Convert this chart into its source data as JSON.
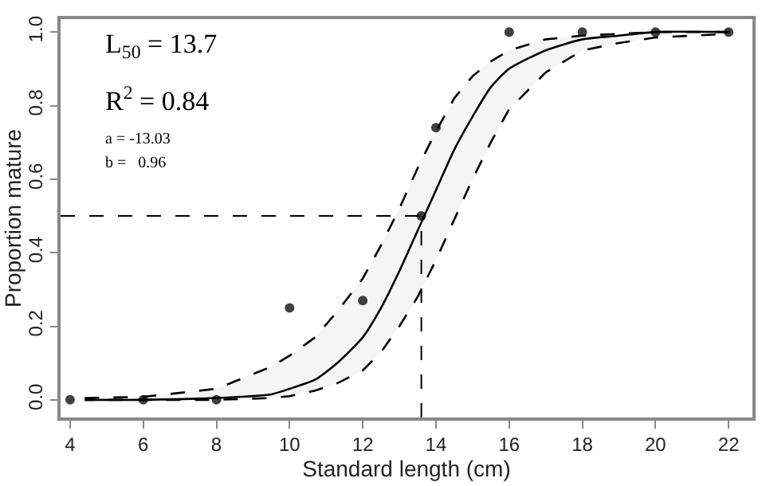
{
  "chart_data": {
    "type": "scatter",
    "xlabel": "Standard length (cm)",
    "ylabel": "Proportion mature",
    "xlim": [
      3.74,
      22.65
    ],
    "ylim": [
      -0.048,
      1.035
    ],
    "xticks": [
      4,
      6,
      8,
      10,
      12,
      14,
      16,
      18,
      20,
      22
    ],
    "yticks": [
      {
        "value": 0,
        "label": "0.0"
      },
      {
        "value": 0.2,
        "label": "0.2"
      },
      {
        "value": 0.4,
        "label": "0.4"
      },
      {
        "value": 0.6,
        "label": "0.6"
      },
      {
        "value": 0.8,
        "label": "0.8"
      },
      {
        "value": 1,
        "label": "1.0"
      }
    ],
    "series": [
      {
        "marker": "circle",
        "color": "#404040",
        "x": [
          4,
          6,
          8,
          10,
          12,
          13.6,
          14,
          16,
          18,
          20,
          22
        ],
        "values": [
          0,
          0,
          0,
          0.25,
          0.27,
          0.5,
          0.74,
          1.0,
          1.0,
          1.0,
          1.0
        ]
      },
      {
        "type": "line",
        "marker": "none",
        "line_style": "solid",
        "color": "#000000",
        "x": [
          4.4,
          6,
          8,
          9.5,
          10,
          10.7,
          11.3,
          12,
          12.5,
          13,
          13.5,
          14,
          14.5,
          15,
          15.5,
          16,
          17,
          18,
          19,
          20,
          22
        ],
        "values": [
          0,
          0,
          0.005,
          0.015,
          0.03,
          0.055,
          0.1,
          0.17,
          0.25,
          0.35,
          0.46,
          0.57,
          0.68,
          0.77,
          0.85,
          0.9,
          0.95,
          0.98,
          0.99,
          1.0,
          1.0
        ],
        "upper": [
          0.005,
          0.008,
          0.03,
          0.09,
          0.12,
          0.17,
          0.24,
          0.33,
          0.42,
          0.52,
          0.63,
          0.73,
          0.82,
          0.88,
          0.92,
          0.95,
          0.98,
          0.99,
          0.995,
          1.0,
          1.0
        ],
        "lower": [
          0,
          0,
          0,
          0.005,
          0.01,
          0.025,
          0.045,
          0.08,
          0.13,
          0.2,
          0.28,
          0.38,
          0.49,
          0.6,
          0.7,
          0.79,
          0.89,
          0.95,
          0.97,
          0.985,
          0.995
        ]
      }
    ],
    "ref_lines": [
      {
        "axis": "y",
        "value": 0.5,
        "line_style": "dashed",
        "color": "#000000"
      },
      {
        "axis": "x",
        "value": 13.6,
        "line_style": "dashed",
        "color": "#000000"
      }
    ],
    "annotations": [
      "L$_{50}$ = 13.7",
      "R$^{2}$ = 0.84",
      "a = -13.03",
      "b =   0.96"
    ]
  }
}
